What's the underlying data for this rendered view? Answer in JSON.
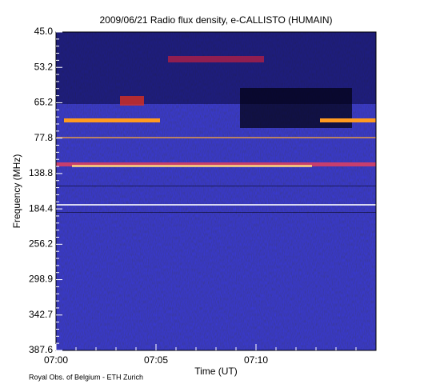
{
  "chart_data": {
    "type": "spectrogram",
    "title": "2009/06/21  Radio flux density, e-CALLISTO (HUMAIN)",
    "x_label": "Time (UT)",
    "y_label": "Frequency (MHz)",
    "footer": "Royal Obs. of Belgium - ETH Zurich",
    "xlim": [
      "07:00",
      "07:16"
    ],
    "xticks": [
      "07:00",
      "07:05",
      "07:10"
    ],
    "ylim": [
      {
        "value": 45,
        "label": "45.0"
      },
      {
        "value": 387.6,
        "label": "387.6"
      }
    ],
    "yticks": [
      {
        "value": 45,
        "label": "45.0"
      },
      53.2,
      65.2,
      77.8,
      138.8,
      184.4,
      256.2,
      298.9,
      342.7,
      387.6
    ]
  }
}
